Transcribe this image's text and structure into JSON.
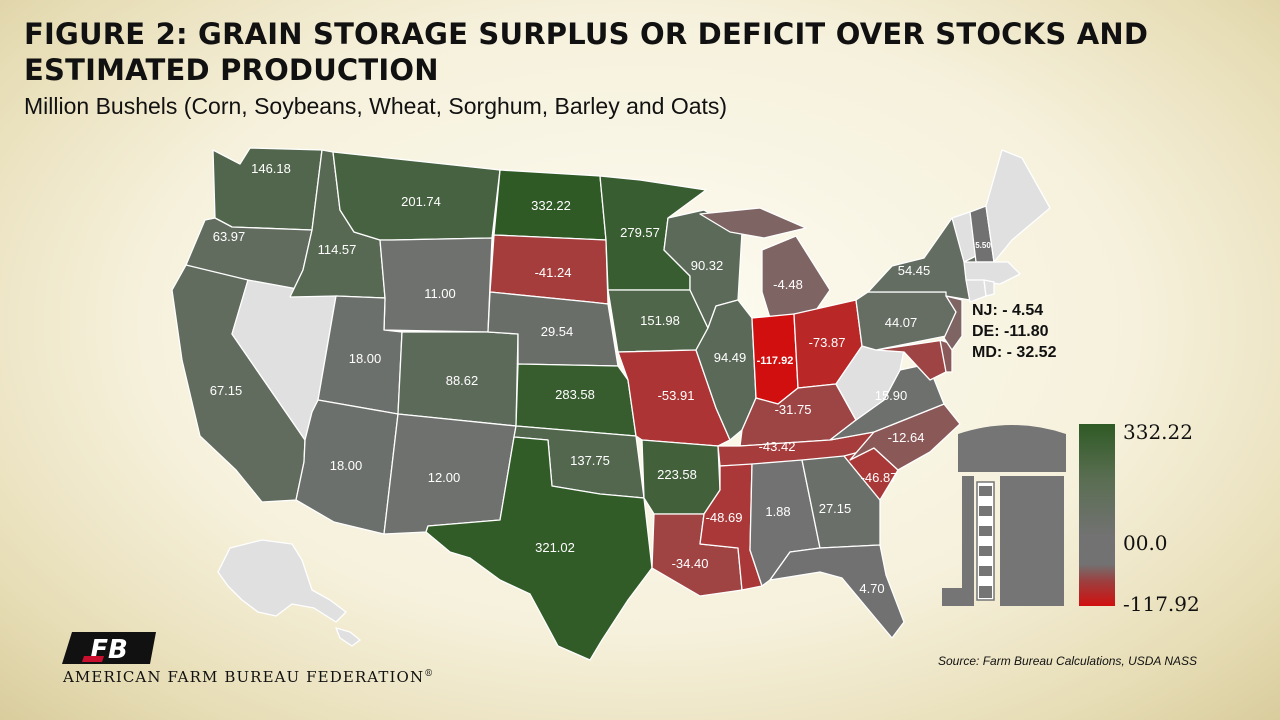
{
  "title": "FIGURE 2: GRAIN STORAGE SURPLUS OR DEFICIT OVER STOCKS AND ESTIMATED PRODUCTION",
  "subtitle": "Million Bushels (Corn, Soybeans, Wheat, Sorghum, Barley and Oats)",
  "colors": {
    "max_green": "#2f5a25",
    "mid_gray": "#727272",
    "min_red": "#d10f0f",
    "no_data": "#e0e0e0"
  },
  "legend": {
    "max": "332.22",
    "mid": "00.0",
    "min": "-117.92"
  },
  "notes": [
    "NJ: - 4.54",
    "DE: -11.80",
    "MD: - 32.52"
  ],
  "source": "Source: Farm Bureau Calculations, USDA NASS",
  "organization": "AMERICAN FARM BUREAU FEDERATION",
  "organization_mark": "®",
  "logo_text": "FB",
  "silo_icon": "grain-silo-icon",
  "states": {
    "WA": {
      "value": 146.18,
      "label": "146.18"
    },
    "OR": {
      "value": 63.97,
      "label": "63.97"
    },
    "CA": {
      "value": 67.15,
      "label": "67.15"
    },
    "ID": {
      "value": 114.57,
      "label": "114.57"
    },
    "MT": {
      "value": 201.74,
      "label": "201.74"
    },
    "WY": {
      "value": 11.0,
      "label": "11.00"
    },
    "UT": {
      "value": 18.0,
      "label": "18.00"
    },
    "AZ": {
      "value": 18.0,
      "label": "18.00"
    },
    "CO": {
      "value": 88.62,
      "label": "88.62"
    },
    "NM": {
      "value": 12.0,
      "label": "12.00"
    },
    "ND": {
      "value": 332.22,
      "label": "332.22"
    },
    "SD": {
      "value": -41.24,
      "label": "-41.24"
    },
    "NE": {
      "value": 29.54,
      "label": "29.54"
    },
    "KS": {
      "value": 283.58,
      "label": "283.58"
    },
    "OK": {
      "value": 137.75,
      "label": "137.75"
    },
    "TX": {
      "value": 321.02,
      "label": "321.02"
    },
    "MN": {
      "value": 279.57,
      "label": "279.57"
    },
    "IA": {
      "value": 151.98,
      "label": "151.98"
    },
    "MO": {
      "value": -53.91,
      "label": "-53.91"
    },
    "AR": {
      "value": 223.58,
      "label": "223.58"
    },
    "LA": {
      "value": -34.4,
      "label": "-34.40"
    },
    "WI": {
      "value": 90.32,
      "label": "90.32"
    },
    "IL": {
      "value": 94.49,
      "label": "94.49"
    },
    "MI": {
      "value": -4.48,
      "label": "-4.48"
    },
    "IN": {
      "value": -117.92,
      "label": "-117.92"
    },
    "OH": {
      "value": -73.87,
      "label": "-73.87"
    },
    "KY": {
      "value": -31.75,
      "label": "-31.75"
    },
    "TN": {
      "value": -43.42,
      "label": "-43.42"
    },
    "MS": {
      "value": -48.69,
      "label": "-48.69"
    },
    "AL": {
      "value": 1.88,
      "label": "1.88"
    },
    "GA": {
      "value": 27.15,
      "label": "27.15"
    },
    "FL": {
      "value": 4.7,
      "label": "4.70"
    },
    "SC": {
      "value": -46.87,
      "label": "-46.87"
    },
    "NC": {
      "value": -12.64,
      "label": "-12.64"
    },
    "VA": {
      "value": 15.9,
      "label": "15.90"
    },
    "PA": {
      "value": 44.07,
      "label": "44.07"
    },
    "NY": {
      "value": 54.45,
      "label": "54.45"
    },
    "NH": {
      "value": 5.5,
      "label": "5.50"
    },
    "NJ": {
      "value": -4.54,
      "label": ""
    },
    "DE": {
      "value": -11.8,
      "label": ""
    },
    "MD": {
      "value": -32.52,
      "label": ""
    },
    "NV": {
      "value": null,
      "label": ""
    },
    "WV": {
      "value": null,
      "label": ""
    },
    "ME": {
      "value": null,
      "label": ""
    },
    "VT": {
      "value": null,
      "label": ""
    },
    "MA": {
      "value": null,
      "label": ""
    },
    "CT": {
      "value": null,
      "label": ""
    },
    "RI": {
      "value": null,
      "label": ""
    },
    "AK": {
      "value": null,
      "label": ""
    },
    "HI": {
      "value": null,
      "label": ""
    }
  }
}
